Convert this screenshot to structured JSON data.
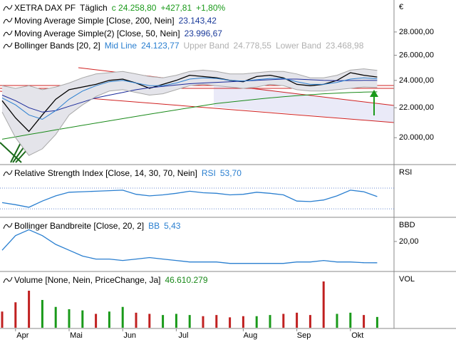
{
  "chart_data": [
    {
      "type": "line",
      "title": "XETRA DAX PF",
      "subtitle": "Täglich",
      "annotations": [
        "c 24.258,80",
        "+427,81",
        "+1,80%"
      ],
      "annotation_color": "#1a9a1a",
      "axis_label": "€",
      "categories": [
        null,
        "Apr",
        null,
        null,
        null,
        "Mai",
        null,
        null,
        null,
        "Jun",
        null,
        null,
        null,
        "Jul",
        null,
        null,
        null,
        null,
        "Aug",
        null,
        null,
        null,
        "Sep",
        null,
        null,
        null,
        "Okt",
        null,
        null
      ],
      "log": true,
      "ylim": [
        18400,
        31000
      ],
      "yticks": [
        {
          "value": 20000,
          "label": "20.000,00"
        },
        {
          "value": 22000,
          "label": "22.000,00"
        },
        {
          "value": 24000,
          "label": "24.000,00"
        },
        {
          "value": 26000,
          "label": "26.000,00"
        },
        {
          "value": 28000,
          "label": "28.000,00"
        }
      ],
      "band_title": "Bollinger Bands [20, 2]",
      "series": [
        {
          "color": "#000000",
          "values": [
            22500,
            21300,
            20400,
            21500,
            22600,
            23300,
            23500,
            23700,
            24000,
            24100,
            23800,
            23400,
            23700,
            24000,
            24400,
            24300,
            24200,
            24000,
            23900,
            24300,
            24400,
            24200,
            23700,
            23600,
            23700,
            24000,
            24600,
            24400,
            24259
          ]
        },
        {
          "name": "Moving Average Simple [Close, 200, Nein]",
          "label": "23.143,42",
          "color": "#1a8a1a",
          "label_color": "#1a3a9a",
          "values": [
            19900,
            20050,
            20200,
            20350,
            20500,
            20650,
            20800,
            20950,
            21100,
            21250,
            21400,
            21550,
            21700,
            21850,
            22000,
            22150,
            22300,
            22400,
            22500,
            22600,
            22700,
            22780,
            22860,
            22930,
            23000,
            23050,
            23090,
            23120,
            23143
          ]
        },
        {
          "name": "Moving Average Simple(2) [Close, 50, Nein]",
          "label": "23.996,67",
          "color": "#1a2a9a",
          "label_color": "#1a3a9a",
          "values": [
            22900,
            22500,
            22000,
            21700,
            21800,
            22100,
            22400,
            22700,
            22900,
            23100,
            23300,
            23450,
            23550,
            23650,
            23750,
            23800,
            23850,
            23900,
            23950,
            24000,
            24050,
            24100,
            24100,
            24050,
            24000,
            23980,
            23990,
            24000,
            23997
          ]
        },
        {
          "name": "Mid Line",
          "label": "24.123,77",
          "color": "#2a7fd0",
          "label_color": "#2a7fd0",
          "values": [
            22700,
            22200,
            21500,
            21200,
            21800,
            22600,
            23200,
            23600,
            23900,
            24000,
            23800,
            23600,
            23600,
            23800,
            24100,
            24200,
            24150,
            24000,
            23950,
            24050,
            24150,
            24150,
            23900,
            23700,
            23700,
            23850,
            24100,
            24200,
            24124
          ]
        },
        {
          "name": "Upper Band",
          "label": "24.778,55",
          "color": "#a8a8a8",
          "label_color": "#b0b0b0",
          "fill": "#e4e4ea",
          "values": [
            23600,
            23400,
            23600,
            23300,
            23500,
            23800,
            24200,
            24500,
            24600,
            24700,
            24500,
            24300,
            24200,
            24400,
            24700,
            24800,
            24700,
            24500,
            24500,
            24600,
            24700,
            24700,
            24500,
            24200,
            24200,
            24400,
            24800,
            24900,
            24779
          ]
        },
        {
          "name": "Lower Band",
          "label": "23.468,98",
          "color": "#a8a8a8",
          "label_color": "#b0b0b0",
          "values": [
            21700,
            20000,
            18900,
            19300,
            20200,
            21500,
            22200,
            22800,
            23200,
            23300,
            23100,
            22900,
            23000,
            23300,
            23600,
            23700,
            23600,
            23500,
            23400,
            23500,
            23700,
            23600,
            23300,
            23200,
            23200,
            23300,
            23400,
            23500,
            23469
          ]
        }
      ]
    },
    {
      "type": "line",
      "title": "Relative Strength Index [Close, 14, 30, 70, Nein]",
      "axis_label": "RSI",
      "ylim": [
        15,
        114
      ],
      "levels": [
        30,
        70
      ],
      "series": [
        {
          "name": "RSI",
          "label": "53,70",
          "color": "#2a7fd0",
          "label_color": "#2a7fd0",
          "values": [
            42,
            38,
            33,
            45,
            55,
            62,
            63,
            64,
            65,
            66,
            58,
            55,
            57,
            60,
            64,
            61,
            60,
            57,
            58,
            62,
            60,
            57,
            45,
            44,
            47,
            55,
            66,
            63,
            53.7
          ]
        }
      ]
    },
    {
      "type": "line",
      "title": "Bollinger Bandbreite [Close, 20, 2]",
      "axis_label": "BBD",
      "ylim": [
        0,
        36
      ],
      "yticks": [
        {
          "value": 20,
          "label": "20,00"
        }
      ],
      "series": [
        {
          "name": "BB",
          "label": "5,43",
          "color": "#2a7fd0",
          "label_color": "#2a7fd0",
          "values": [
            14,
            24,
            28,
            24,
            18,
            14,
            10,
            8,
            8,
            7,
            8,
            9,
            8,
            7,
            6,
            6,
            6,
            5,
            5,
            5,
            5,
            5,
            6,
            6,
            7,
            6,
            6,
            5.5,
            5.43
          ]
        }
      ]
    },
    {
      "type": "bar",
      "title": "Volume [None, Nein, PriceChange, Ja]",
      "axis_label": "VOL",
      "ylim": [
        0,
        240000000
      ],
      "series": [
        {
          "label": "46.610.279",
          "label_color": "#1a8a1a",
          "colors": [
            "#c02020",
            "#c02020",
            "#c02020",
            "#1a9a1a",
            "#1a9a1a",
            "#1a9a1a",
            "#1a9a1a",
            "#c02020",
            "#1a9a1a",
            "#1a9a1a",
            "#c02020",
            "#c02020",
            "#1a9a1a",
            "#1a9a1a",
            "#1a9a1a",
            "#c02020",
            "#c02020",
            "#c02020",
            "#c02020",
            "#1a9a1a",
            "#1a9a1a",
            "#c02020",
            "#c02020",
            "#c02020",
            "#c02020",
            "#1a9a1a",
            "#1a9a1a",
            "#c02020",
            "#1a9a1a"
          ],
          "values": [
            70000000,
            110000000,
            160000000,
            120000000,
            90000000,
            80000000,
            75000000,
            60000000,
            70000000,
            90000000,
            65000000,
            60000000,
            55000000,
            60000000,
            55000000,
            50000000,
            55000000,
            45000000,
            50000000,
            50000000,
            55000000,
            60000000,
            65000000,
            55000000,
            200000000,
            60000000,
            65000000,
            55000000,
            46610279
          ]
        }
      ]
    }
  ]
}
